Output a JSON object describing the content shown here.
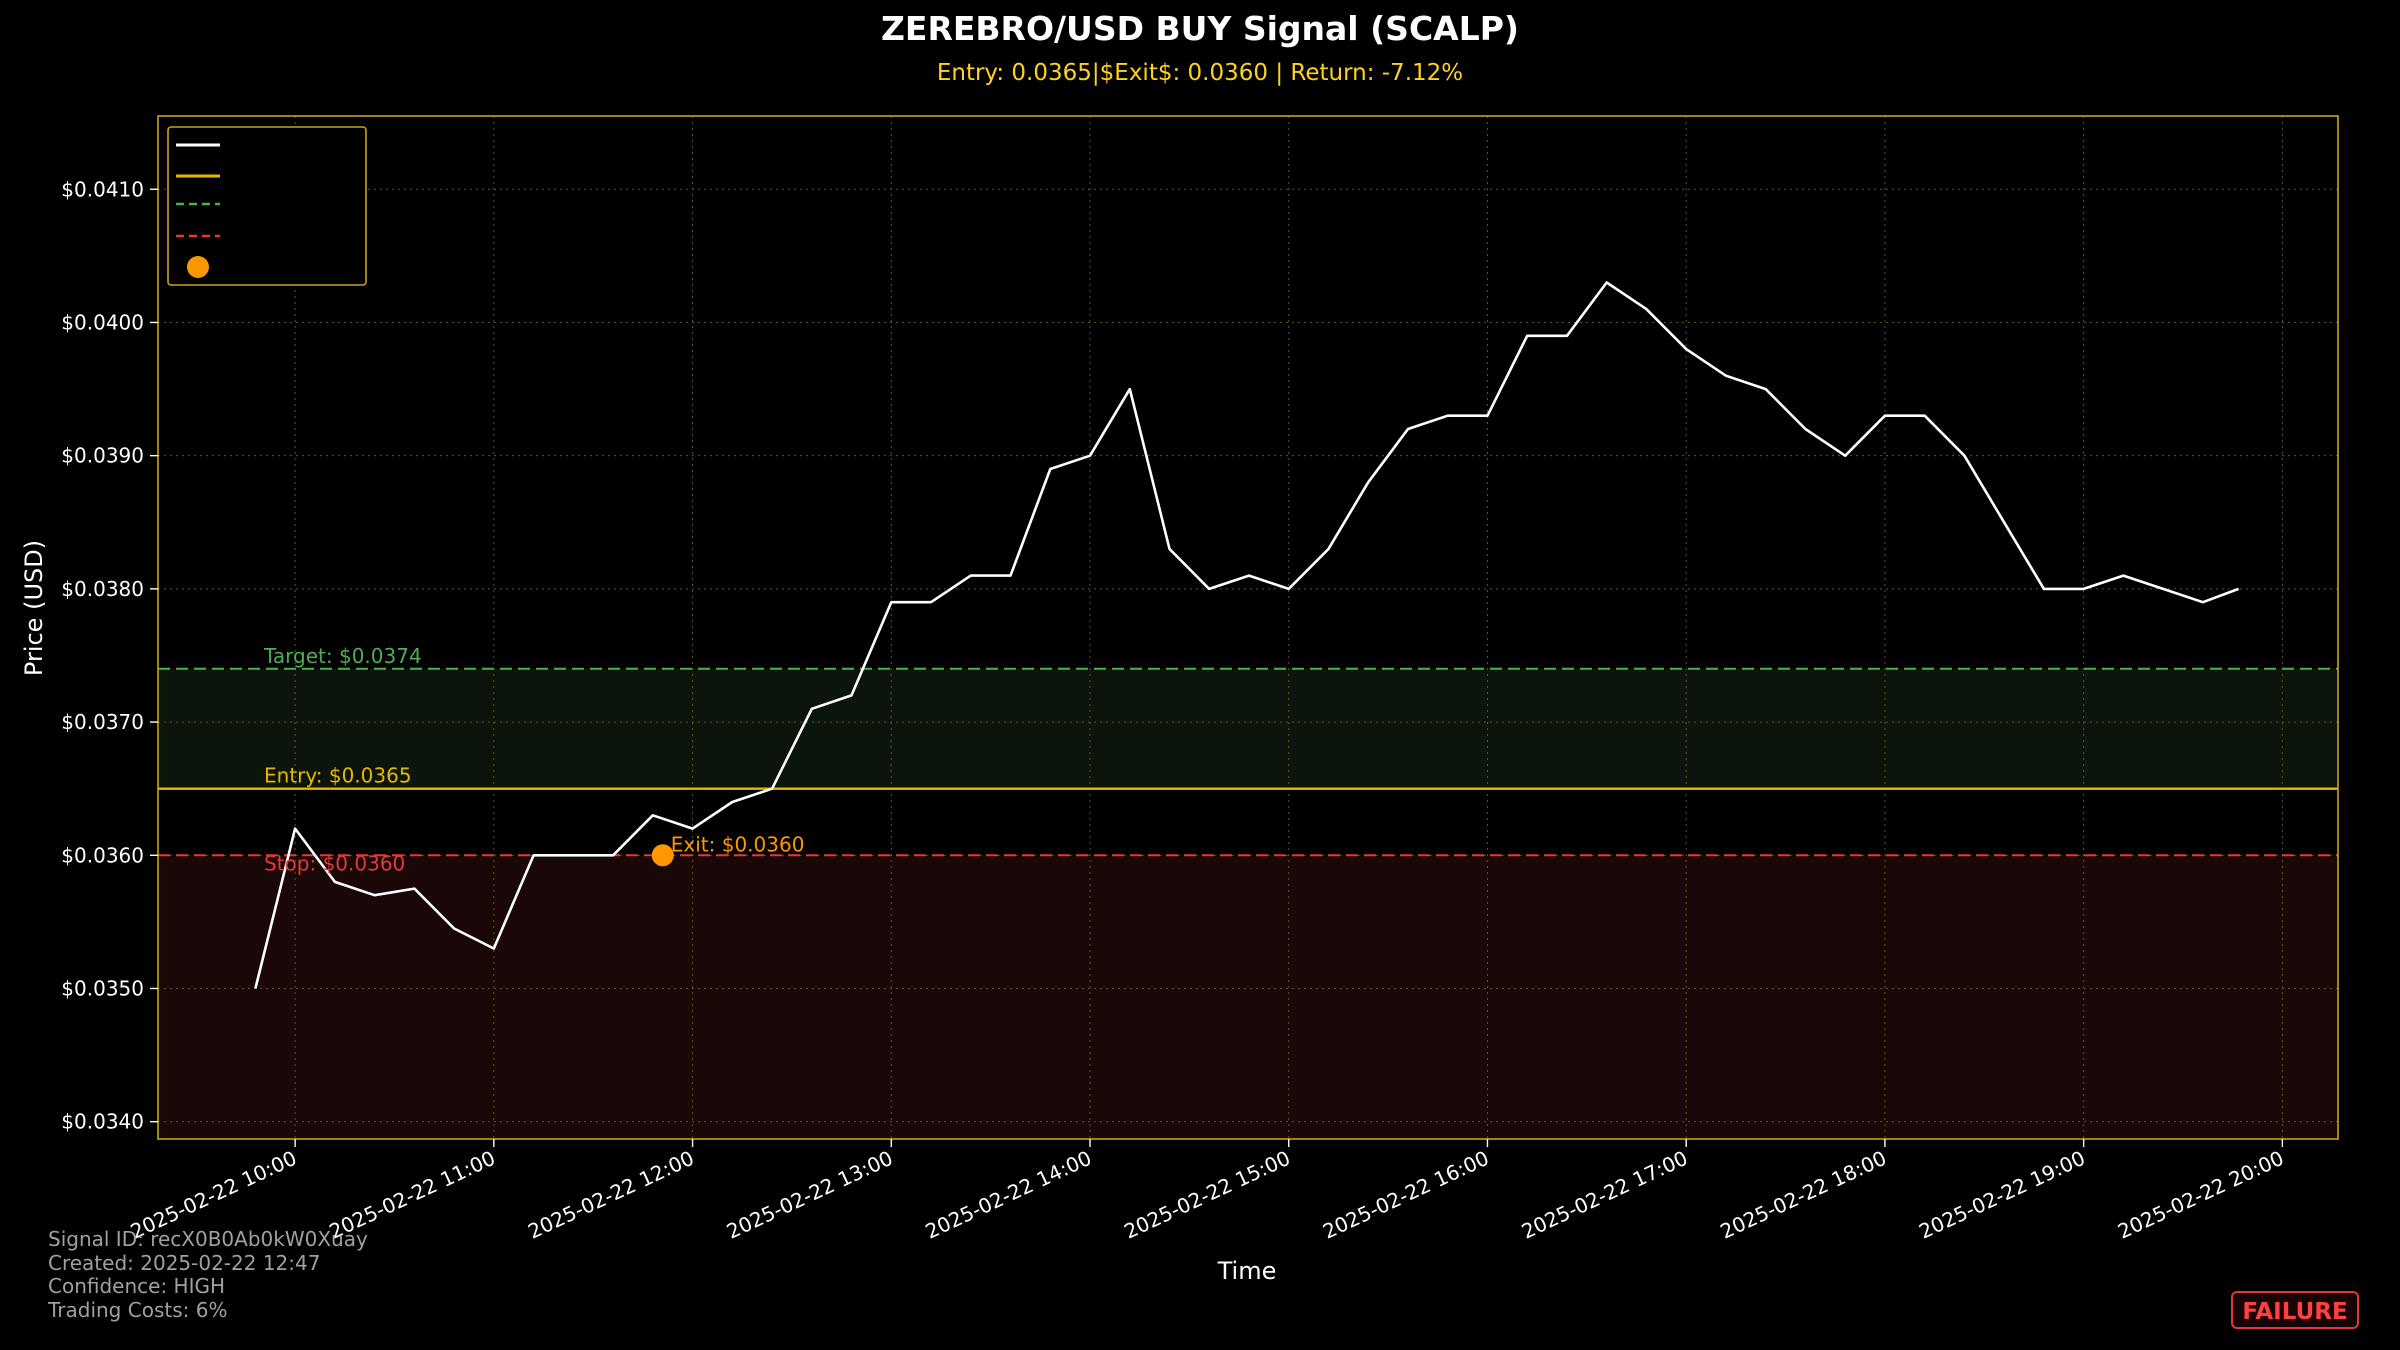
{
  "chart_data": {
    "type": "line",
    "title": "ZEREBRO/USD BUY Signal (SCALP)",
    "subtitle": "Entry: 0.0365|$Exit$: 0.0360 | Return: -7.12%",
    "xlabel": "Time",
    "ylabel": "Price (USD)",
    "x_ticks": [
      "2025-02-22 10:00",
      "2025-02-22 11:00",
      "2025-02-22 12:00",
      "2025-02-22 13:00",
      "2025-02-22 14:00",
      "2025-02-22 15:00",
      "2025-02-22 16:00",
      "2025-02-22 17:00",
      "2025-02-22 18:00",
      "2025-02-22 19:00",
      "2025-02-22 20:00"
    ],
    "y_ticks": [
      "$0.0340",
      "$0.0350",
      "$0.0360",
      "$0.0370",
      "$0.0380",
      "$0.0390",
      "$0.0400",
      "$0.0410"
    ],
    "ylim": [
      0.03387,
      0.04155
    ],
    "xlim_hours": [
      9.31,
      20.28
    ],
    "grid": true,
    "legend_position": "top-left",
    "series": [
      {
        "color": "#ffffff",
        "x_hours": [
          9.8,
          10.0,
          10.2,
          10.4,
          10.6,
          10.8,
          11.0,
          11.2,
          11.4,
          11.6,
          11.8,
          12.0,
          12.2,
          12.4,
          12.6,
          12.8,
          13.0,
          13.2,
          13.4,
          13.6,
          13.8,
          14.0,
          14.2,
          14.4,
          14.6,
          14.8,
          15.0,
          15.2,
          15.4,
          15.6,
          15.8,
          16.0,
          16.2,
          16.4,
          16.6,
          16.8,
          17.0,
          17.2,
          17.4,
          17.6,
          17.8,
          18.0,
          18.2,
          18.4,
          18.6,
          18.8,
          19.0,
          19.2,
          19.4,
          19.6,
          19.78
        ],
        "values": [
          0.035,
          0.0362,
          0.0358,
          0.0357,
          0.03575,
          0.03545,
          0.0353,
          0.036,
          0.036,
          0.036,
          0.0363,
          0.0362,
          0.0364,
          0.0365,
          0.0371,
          0.0372,
          0.0379,
          0.0379,
          0.0381,
          0.0381,
          0.0389,
          0.039,
          0.0395,
          0.0383,
          0.038,
          0.0381,
          0.038,
          0.0383,
          0.0388,
          0.0392,
          0.0393,
          0.0393,
          0.0399,
          0.0399,
          0.0403,
          0.0401,
          0.0398,
          0.0396,
          0.0395,
          0.0392,
          0.039,
          0.0393,
          0.0393,
          0.039,
          0.0385,
          0.038,
          0.038,
          0.0381,
          0.038,
          0.0379,
          0.038
        ]
      }
    ],
    "levels": {
      "target": {
        "value": 0.0374,
        "label": "Target: $0.0374",
        "color": "#4caf50"
      },
      "entry": {
        "value": 0.0365,
        "label": "Entry: $0.0365",
        "color": "#e6b800"
      },
      "stop": {
        "value": 0.036,
        "label": "Stop: $0.0360",
        "color": "#e53935"
      }
    },
    "exit_point": {
      "x_hours": 11.85,
      "value": 0.036,
      "label": "Exit: $0.0360",
      "color": "#ff9800"
    }
  },
  "footer": {
    "signal_id": "Signal ID: recX0B0Ab0kW0Xuay",
    "created": "Created: 2025-02-22 12:47",
    "confidence": "Confidence: HIGH",
    "costs": "Trading Costs: 6%"
  },
  "badge": {
    "label": "FAILURE",
    "color": "#ff4040"
  }
}
